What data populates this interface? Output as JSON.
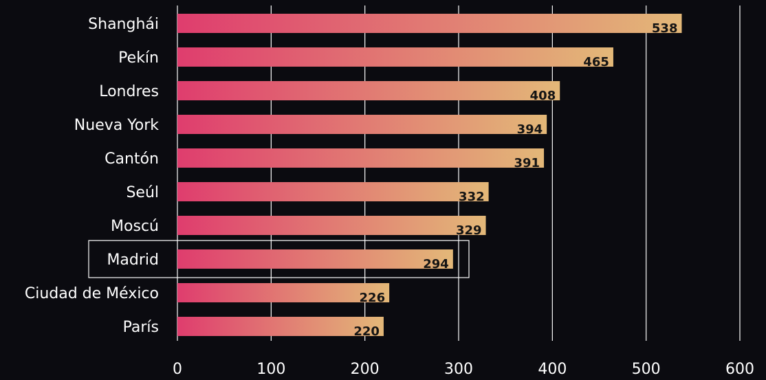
{
  "chart_data": {
    "type": "bar",
    "orientation": "horizontal",
    "categories": [
      "Shanghái",
      "Pekín",
      "Londres",
      "Nueva York",
      "Cantón",
      "Seúl",
      "Moscú",
      "Madrid",
      "Ciudad de México",
      "París"
    ],
    "values": [
      538,
      465,
      408,
      394,
      391,
      332,
      329,
      294,
      226,
      220
    ],
    "title": "",
    "xlabel": "",
    "ylabel": "",
    "xlim": [
      0,
      600
    ],
    "xticks": [
      0,
      100,
      200,
      300,
      400,
      500,
      600
    ],
    "grid": "vertical",
    "highlighted_category": "Madrid",
    "colors": {
      "background": "#0b0b10",
      "bar_gradient_start": "#df3d6e",
      "bar_gradient_end": "#e3b878",
      "text": "#ffffff",
      "value_text": "#141414",
      "gridline": "#ffffff"
    }
  }
}
